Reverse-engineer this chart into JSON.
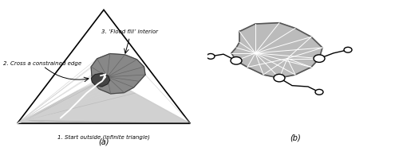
{
  "fig_width": 5.0,
  "fig_height": 1.85,
  "dpi": 100,
  "bg_color": "#ffffff",
  "label_a": "(a)",
  "label_b": "(b)",
  "ann1": "1. Start outside (infinite triangle)",
  "ann2": "2. Cross a constrained edge",
  "ann3": "3. ‘Flood fill’ interior",
  "light_gray": "#cccccc",
  "mid_gray": "#888888",
  "dark_gray": "#444444",
  "black": "#000000",
  "white": "#ffffff",
  "panel_b_fill": "#bbbbbb",
  "panel_b_stroke": "#555555"
}
